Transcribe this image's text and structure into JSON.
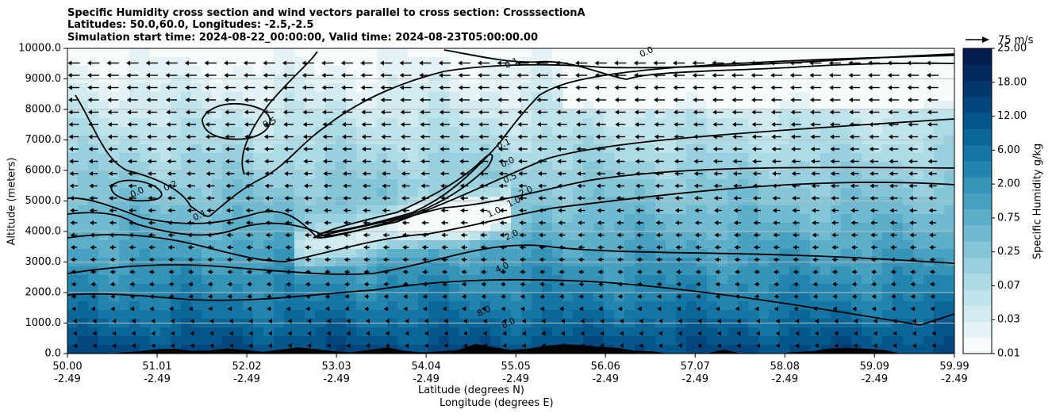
{
  "chart_data": {
    "type": "heatmap",
    "title_lines": [
      "Specific Humidity cross section and wind vectors parallel to cross section: CrosssectionA",
      "Latitudes: 50.0,60.0, Longitudes: -2.5,-2.5",
      "Simulation start time: 2024-08-22_00:00:00, Valid time: 2024-08-23T05:00:00.00"
    ],
    "ylabel": "Altitude (meters)",
    "xlabel_lat": "Latitude (degrees N)",
    "xlabel_lon": "Longitude (degrees E)",
    "colorbar_label": "Specific Humidity g/kg",
    "quiver_key": "75 m/s",
    "ylim": [
      0,
      10000
    ],
    "xlim": [
      50.0,
      59.99
    ],
    "y_ticks": [
      "0.0",
      "1000.0",
      "2000.0",
      "3000.0",
      "4000.0",
      "5000.0",
      "6000.0",
      "7000.0",
      "8000.0",
      "9000.0",
      "10000.0"
    ],
    "x_ticks": [
      {
        "lat": "50.00",
        "lon": "-2.49"
      },
      {
        "lat": "51.01",
        "lon": "-2.49"
      },
      {
        "lat": "52.02",
        "lon": "-2.49"
      },
      {
        "lat": "53.03",
        "lon": "-2.49"
      },
      {
        "lat": "54.04",
        "lon": "-2.49"
      },
      {
        "lat": "55.05",
        "lon": "-2.49"
      },
      {
        "lat": "56.06",
        "lon": "-2.49"
      },
      {
        "lat": "57.07",
        "lon": "-2.49"
      },
      {
        "lat": "58.08",
        "lon": "-2.49"
      },
      {
        "lat": "59.09",
        "lon": "-2.49"
      },
      {
        "lat": "59.99",
        "lon": "-2.49"
      }
    ],
    "colorbar_ticks": [
      "0.01",
      "0.03",
      "0.07",
      "0.25",
      "0.75",
      "2.00",
      "6.00",
      "12.00",
      "18.00",
      "25.00"
    ],
    "colorbar_levels": [
      "0.01",
      "0.02",
      "0.03",
      "0.05",
      "0.07",
      "0.1",
      "0.25",
      "0.5",
      "0.75",
      "1.0",
      "2.00",
      "4.0",
      "6.00",
      "8.0",
      "12.00",
      "15.0",
      "18.00",
      "21.0",
      "25.00"
    ],
    "colorbar_colors": [
      "#f7fbfc",
      "#e5f3f6",
      "#d2ebf0",
      "#bfe3eb",
      "#acdae5",
      "#98d0df",
      "#84c6d8",
      "#70bbd1",
      "#5caec9",
      "#48a1c0",
      "#3593b7",
      "#2384ae",
      "#1575a4",
      "#0a6699",
      "#05568c",
      "#03467d",
      "#03386d",
      "#042a5d",
      "#061e4d"
    ],
    "contour_labels": [
      "0.1",
      "0.0",
      "0.5",
      "0.2",
      "0.0",
      "0.1",
      "0.1",
      "0.0",
      "0.5",
      "1.0",
      "1.0",
      "2.0",
      "2.0",
      "4.0",
      "8.0",
      "8.0"
    ],
    "terrain_height_m": [
      0,
      0,
      0,
      30,
      70,
      140,
      160,
      90,
      100,
      170,
      120,
      60,
      130,
      200,
      150,
      80,
      40,
      120,
      200,
      90,
      40,
      70,
      110,
      320,
      210,
      120,
      160,
      260,
      310,
      280,
      220,
      190,
      90,
      70,
      0,
      0,
      0,
      130,
      0,
      0,
      0,
      50,
      80,
      170,
      180,
      160,
      120,
      0,
      0,
      0,
      0
    ]
  }
}
